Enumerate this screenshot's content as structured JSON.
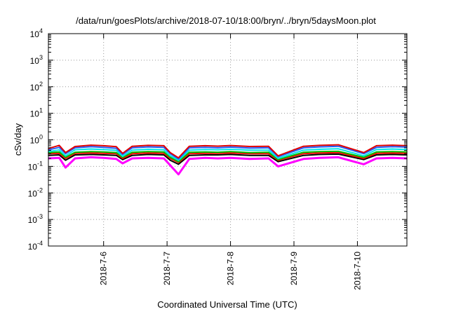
{
  "chart_data": {
    "type": "line",
    "title": "/data/run/goesPlots/archive/2018-07-10/18:00/bryn/../bryn/5daysMoon.plot",
    "xlabel": "Coordinated Universal Time (UTC)",
    "ylabel": "cSv/day",
    "yscale": "log",
    "ylim": [
      0.0001,
      10000
    ],
    "y_ticks": [
      {
        "base": "10",
        "exp": "-4"
      },
      {
        "base": "10",
        "exp": "-3"
      },
      {
        "base": "10",
        "exp": "-2"
      },
      {
        "base": "10",
        "exp": "-1"
      },
      {
        "base": "10",
        "exp": "0"
      },
      {
        "base": "10",
        "exp": "1"
      },
      {
        "base": "10",
        "exp": "2"
      },
      {
        "base": "10",
        "exp": "3"
      },
      {
        "base": "10",
        "exp": "4"
      }
    ],
    "x_ticks": [
      "2018-7-6",
      "2018-7-7",
      "2018-7-8",
      "2018-7-9",
      "2018-7-10"
    ],
    "x_tick_days": [
      6,
      7,
      8,
      9,
      10
    ],
    "xlim_days": [
      5.13,
      10.78
    ],
    "grid": true,
    "series": [
      {
        "color": "#ff00ff",
        "values": [
          0.2,
          0.21,
          0.09,
          0.2,
          0.22,
          0.21,
          0.19,
          0.13,
          0.2,
          0.21,
          0.2,
          0.11,
          0.05,
          0.19,
          0.21,
          0.2,
          0.21,
          0.19,
          0.2,
          0.1,
          0.19,
          0.21,
          0.22,
          0.12,
          0.2,
          0.21,
          0.2
        ]
      },
      {
        "color": "#000000",
        "values": [
          0.26,
          0.27,
          0.17,
          0.27,
          0.28,
          0.27,
          0.26,
          0.18,
          0.26,
          0.28,
          0.27,
          0.17,
          0.12,
          0.26,
          0.27,
          0.27,
          0.28,
          0.26,
          0.26,
          0.15,
          0.26,
          0.28,
          0.29,
          0.18,
          0.27,
          0.28,
          0.27
        ]
      },
      {
        "color": "#ff0000",
        "values": [
          0.3,
          0.31,
          0.2,
          0.31,
          0.32,
          0.31,
          0.3,
          0.2,
          0.3,
          0.32,
          0.31,
          0.2,
          0.14,
          0.3,
          0.31,
          0.31,
          0.32,
          0.3,
          0.3,
          0.17,
          0.3,
          0.32,
          0.33,
          0.2,
          0.31,
          0.32,
          0.31
        ]
      },
      {
        "color": "#00c000",
        "values": [
          0.33,
          0.35,
          0.22,
          0.34,
          0.36,
          0.35,
          0.33,
          0.22,
          0.34,
          0.36,
          0.35,
          0.22,
          0.15,
          0.34,
          0.35,
          0.34,
          0.36,
          0.33,
          0.34,
          0.18,
          0.34,
          0.36,
          0.37,
          0.22,
          0.35,
          0.36,
          0.35
        ]
      },
      {
        "color": "#00e5e5",
        "values": [
          0.36,
          0.42,
          0.25,
          0.42,
          0.45,
          0.43,
          0.4,
          0.24,
          0.41,
          0.44,
          0.42,
          0.25,
          0.17,
          0.41,
          0.43,
          0.42,
          0.44,
          0.41,
          0.41,
          0.2,
          0.41,
          0.44,
          0.46,
          0.25,
          0.43,
          0.45,
          0.43
        ]
      },
      {
        "color": "#2060ff",
        "values": [
          0.42,
          0.52,
          0.3,
          0.5,
          0.55,
          0.52,
          0.48,
          0.28,
          0.5,
          0.54,
          0.52,
          0.3,
          0.19,
          0.5,
          0.52,
          0.5,
          0.53,
          0.49,
          0.5,
          0.23,
          0.5,
          0.54,
          0.57,
          0.3,
          0.52,
          0.55,
          0.53
        ]
      },
      {
        "color": "#e00000",
        "values": [
          0.47,
          0.62,
          0.33,
          0.56,
          0.63,
          0.6,
          0.55,
          0.31,
          0.57,
          0.62,
          0.6,
          0.33,
          0.21,
          0.57,
          0.6,
          0.58,
          0.61,
          0.56,
          0.57,
          0.25,
          0.57,
          0.62,
          0.65,
          0.33,
          0.6,
          0.63,
          0.6
        ]
      }
    ],
    "x_days": [
      5.13,
      5.3,
      5.4,
      5.55,
      5.8,
      6.0,
      6.2,
      6.3,
      6.45,
      6.7,
      6.95,
      7.05,
      7.18,
      7.35,
      7.6,
      7.8,
      8.0,
      8.3,
      8.6,
      8.75,
      9.15,
      9.4,
      9.7,
      10.1,
      10.3,
      10.55,
      10.78
    ]
  }
}
